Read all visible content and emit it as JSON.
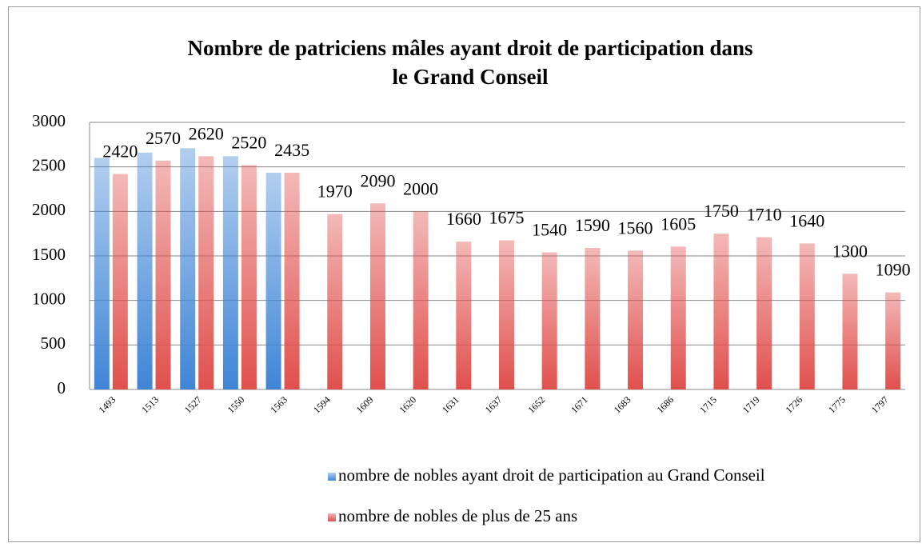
{
  "chart_data": {
    "type": "bar",
    "title": "Nombre de patriciens mâles ayant droit de participation dans le Grand Conseil",
    "categories": [
      "1493",
      "1513",
      "1527",
      "1550",
      "1563",
      "1594",
      "1609",
      "1620",
      "1631",
      "1637",
      "1652",
      "1671",
      "1683",
      "1686",
      "1715",
      "1719",
      "1726",
      "1775",
      "1797"
    ],
    "series": [
      {
        "name": "nombre de nobles ayant droit de participation au Grand Conseil",
        "color": "#3f85d6",
        "values": [
          2600,
          2660,
          2710,
          2620,
          2435,
          null,
          null,
          null,
          null,
          null,
          null,
          null,
          null,
          null,
          null,
          null,
          null,
          null,
          null
        ]
      },
      {
        "name": "nombre de nobles de plus de 25 ans",
        "color": "#e0504d",
        "values": [
          2420,
          2570,
          2620,
          2520,
          2435,
          1970,
          2090,
          2000,
          1660,
          1675,
          1540,
          1590,
          1560,
          1605,
          1750,
          1710,
          1640,
          1300,
          1090
        ]
      }
    ],
    "data_labels_series": 1,
    "ylim": [
      0,
      3000
    ],
    "yticks": [
      0,
      500,
      1000,
      1500,
      2000,
      2500,
      3000
    ],
    "grid": true,
    "legend": "bottom"
  }
}
